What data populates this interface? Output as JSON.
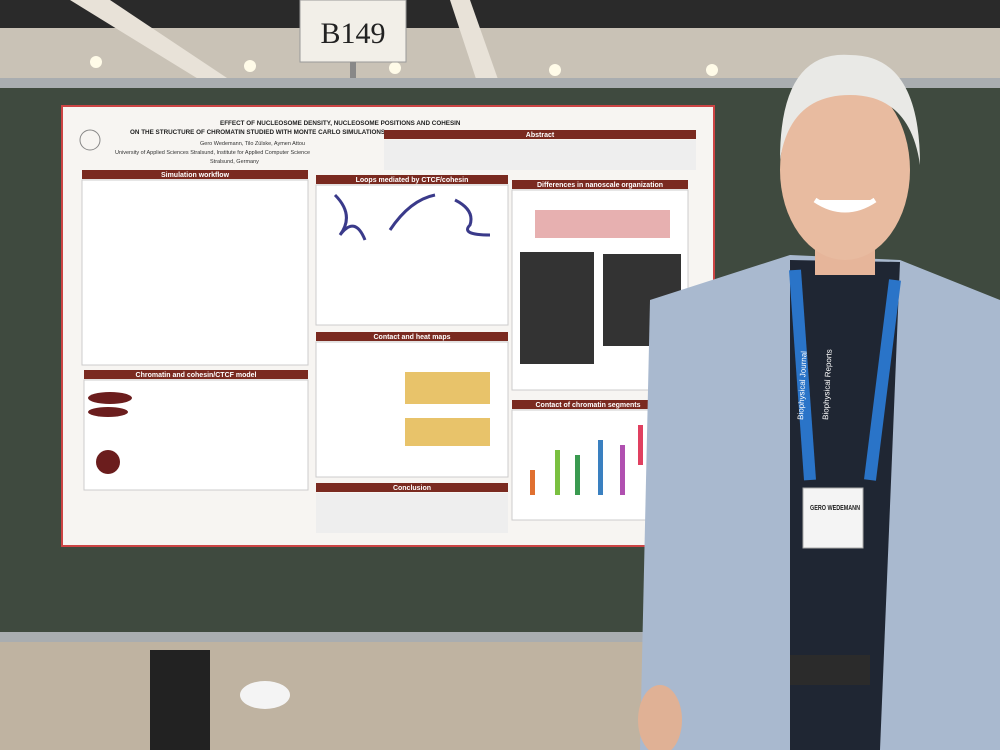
{
  "sign": {
    "label": "B149"
  },
  "poster": {
    "title_line1": "EFFECT OF NUCLEOSOME DENSITY, NUCLEOSOME POSITIONS AND COHESIN",
    "title_line2": "ON THE STRUCTURE OF CHROMATIN STUDIED WITH MONTE CARLO SIMULATIONS",
    "authors": "Gero Wedemann, Tilo Zülske, Aymen Attou",
    "affiliation": "University of Applied Sciences Stralsund, Institute for Applied Computer Science",
    "location": "Stralsund, Germany",
    "sections": {
      "abstract": "Abstract",
      "workflow": "Simulation workflow",
      "loops": "Loops mediated by CTCF/cohesin",
      "differences": "Differences in nanoscale organization",
      "heatmaps": "Contact and heat maps",
      "model": "Chromatin and cohesin/CTCF model",
      "conclusion": "Conclusion",
      "contact": "Contact of chromatin segments"
    }
  },
  "lanyard": {
    "text1": "Biophysical Journal",
    "text2": "Biophysical Reports"
  },
  "badge": {
    "name": "GERO WEDEMANN"
  }
}
